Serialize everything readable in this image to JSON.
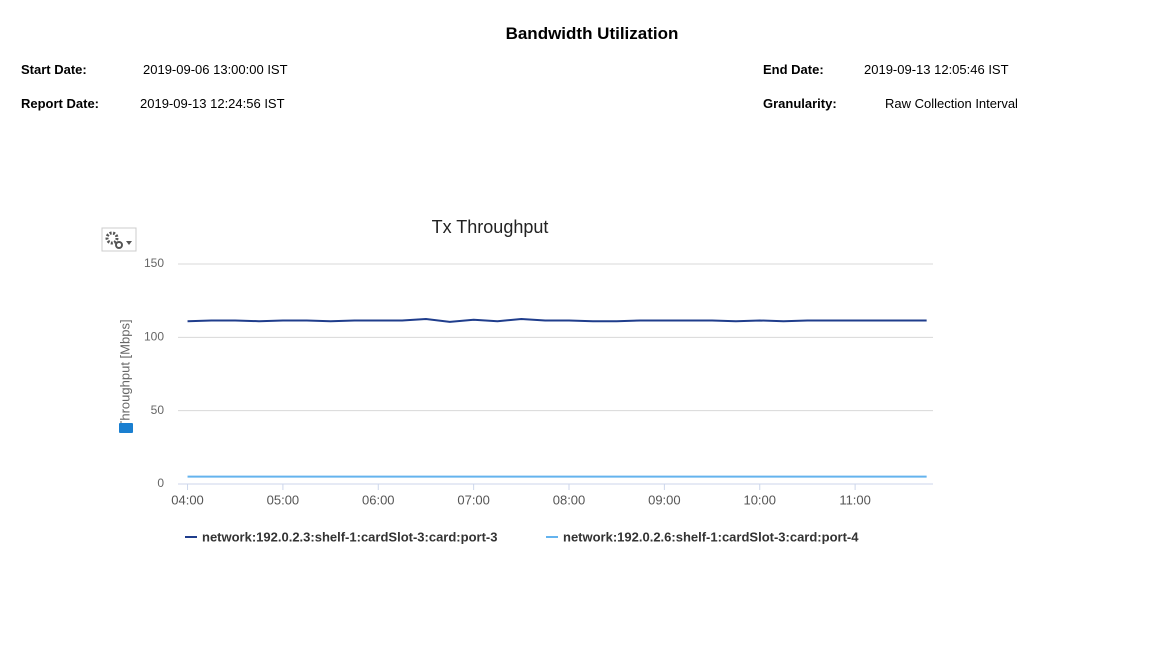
{
  "header": {
    "title": "Bandwidth Utilization",
    "fields": [
      {
        "label": "Start Date:",
        "value": "2019-09-06 13:00:00 IST"
      },
      {
        "label": "Report Date:",
        "value": "2019-09-13 12:24:56 IST"
      },
      {
        "label": "End Date:",
        "value": "2019-09-13 12:05:46 IST"
      },
      {
        "label": "Granularity:",
        "value": "Raw Collection Interval"
      }
    ]
  },
  "chart_data": {
    "type": "line",
    "title": "Tx Throughput",
    "y_label": "Throughput [Mbps]",
    "x": [
      "04:00",
      "04:15",
      "04:30",
      "04:45",
      "05:00",
      "05:15",
      "05:30",
      "05:45",
      "06:00",
      "06:15",
      "06:30",
      "06:45",
      "07:00",
      "07:15",
      "07:30",
      "07:45",
      "08:00",
      "08:15",
      "08:30",
      "08:45",
      "09:00",
      "09:15",
      "09:30",
      "09:45",
      "10:00",
      "10:15",
      "10:30",
      "10:45",
      "11:00",
      "11:15",
      "11:30",
      "11:45"
    ],
    "series": [
      {
        "name": "network:192.0.2.3:shelf-1:cardSlot-3:card:port-3",
        "color": "#1f3d8c",
        "values": [
          111,
          111.5,
          111.5,
          111,
          111.5,
          111.5,
          111,
          111.5,
          111.5,
          111.5,
          112.5,
          110.5,
          112,
          111,
          112.5,
          111.5,
          111.5,
          111,
          111,
          111.5,
          111.5,
          111.5,
          111.5,
          111,
          111.5,
          111,
          111.5,
          111.5,
          111.5,
          111.5,
          111.5,
          111.5
        ]
      },
      {
        "name": "network:192.0.2.6:shelf-1:cardSlot-3:card:port-4",
        "color": "#64b3ee",
        "values": [
          5,
          5,
          5,
          5,
          5,
          5,
          5,
          5,
          5,
          5,
          5,
          5,
          5,
          5,
          5,
          5,
          5,
          5,
          5,
          5,
          5,
          5,
          5,
          5,
          5,
          5,
          5,
          5,
          5,
          5,
          5,
          5
        ]
      }
    ],
    "xlim": [
      "03:54",
      "11:49"
    ],
    "xticks": [
      "04:00",
      "05:00",
      "06:00",
      "07:00",
      "08:00",
      "09:00",
      "10:00",
      "11:00"
    ],
    "ylim": [
      0,
      150
    ],
    "yticks": [
      0,
      50,
      100,
      150
    ],
    "grid": true
  }
}
